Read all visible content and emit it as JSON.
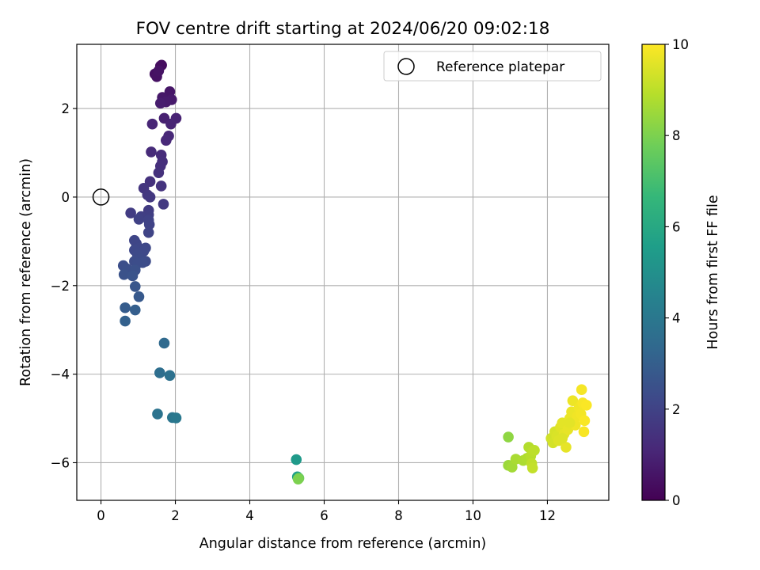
{
  "chart_data": {
    "type": "scatter",
    "title": "FOV centre drift starting at 2024/06/20 09:02:18",
    "xlabel": "Angular distance from reference (arcmin)",
    "ylabel": "Rotation from reference (arcmin)",
    "xlim": [
      -0.65,
      13.65
    ],
    "ylim": [
      -6.85,
      3.45
    ],
    "xticks": [
      0,
      2,
      4,
      6,
      8,
      10,
      12
    ],
    "xtick_labels": [
      "0",
      "2",
      "4",
      "6",
      "8",
      "10",
      "12"
    ],
    "yticks": [
      -6,
      -4,
      -2,
      0,
      2
    ],
    "ytick_labels": [
      "−6",
      "−4",
      "−2",
      "0",
      "2"
    ],
    "grid": true,
    "legend": {
      "position": "top-right",
      "label": "Reference platepar"
    },
    "reference": {
      "x": 0,
      "y": 0
    },
    "colorbar": {
      "label": "Hours from first FF file",
      "range": [
        0,
        10
      ],
      "ticks": [
        0,
        2,
        4,
        6,
        8,
        10
      ],
      "tick_labels": [
        "0",
        "2",
        "4",
        "6",
        "8",
        "10"
      ],
      "colormap": "viridis"
    },
    "colormap_stops": [
      "#440154",
      "#482878",
      "#3e4989",
      "#31688e",
      "#26828e",
      "#1f9e89",
      "#35b779",
      "#6ece58",
      "#b5de2b",
      "#fde725"
    ],
    "series": [
      {
        "points": [
          [
            1.63,
            2.98
          ],
          [
            1.6,
            2.96
          ],
          [
            1.45,
            2.78
          ],
          [
            1.5,
            2.72
          ],
          [
            1.55,
            2.85
          ],
          [
            1.85,
            2.38
          ],
          [
            1.65,
            2.25
          ],
          [
            1.9,
            2.2
          ],
          [
            1.75,
            2.15
          ],
          [
            1.6,
            2.12
          ],
          [
            1.7,
            1.78
          ],
          [
            2.02,
            1.78
          ],
          [
            1.88,
            1.65
          ],
          [
            1.38,
            1.65
          ],
          [
            1.82,
            1.38
          ],
          [
            1.75,
            1.28
          ],
          [
            1.35,
            1.02
          ],
          [
            1.62,
            0.95
          ],
          [
            1.65,
            0.8
          ],
          [
            1.6,
            0.7
          ],
          [
            1.55,
            0.55
          ],
          [
            1.32,
            0.35
          ],
          [
            1.62,
            0.25
          ],
          [
            1.15,
            0.2
          ],
          [
            1.25,
            0.05
          ],
          [
            1.32,
            0.0
          ],
          [
            1.68,
            -0.16
          ],
          [
            1.28,
            -0.3
          ],
          [
            0.8,
            -0.36
          ],
          [
            1.28,
            -0.4
          ],
          [
            1.08,
            -0.44
          ],
          [
            1.02,
            -0.5
          ],
          [
            1.28,
            -0.52
          ],
          [
            1.3,
            -0.62
          ],
          [
            1.28,
            -0.8
          ],
          [
            0.9,
            -0.98
          ],
          [
            0.95,
            -1.05
          ],
          [
            1.02,
            -1.15
          ],
          [
            1.2,
            -1.15
          ],
          [
            0.9,
            -1.2
          ],
          [
            1.15,
            -1.22
          ],
          [
            0.98,
            -1.3
          ],
          [
            1.05,
            -1.4
          ],
          [
            1.2,
            -1.45
          ],
          [
            0.9,
            -1.45
          ],
          [
            1.12,
            -1.48
          ],
          [
            0.98,
            -1.5
          ],
          [
            0.6,
            -1.55
          ],
          [
            0.7,
            -1.62
          ],
          [
            0.92,
            -1.65
          ],
          [
            0.62,
            -1.75
          ],
          [
            0.85,
            -1.78
          ],
          [
            0.92,
            -2.02
          ],
          [
            1.02,
            -2.25
          ],
          [
            0.65,
            -2.5
          ],
          [
            0.92,
            -2.55
          ],
          [
            0.65,
            -2.8
          ],
          [
            1.7,
            -3.3
          ],
          [
            1.58,
            -3.97
          ],
          [
            1.85,
            -4.03
          ],
          [
            1.52,
            -4.9
          ],
          [
            1.92,
            -4.98
          ],
          [
            2.02,
            -4.99
          ],
          [
            5.25,
            -5.93
          ],
          [
            5.28,
            -6.32
          ],
          [
            5.32,
            -6.35
          ],
          [
            5.3,
            -6.37
          ],
          [
            10.95,
            -5.42
          ],
          [
            10.95,
            -6.06
          ],
          [
            11.05,
            -6.1
          ],
          [
            11.15,
            -5.92
          ],
          [
            11.35,
            -5.95
          ],
          [
            11.45,
            -5.9
          ],
          [
            11.5,
            -5.65
          ],
          [
            11.55,
            -5.85
          ],
          [
            11.6,
            -5.75
          ],
          [
            11.65,
            -5.72
          ],
          [
            11.58,
            -6.02
          ],
          [
            11.6,
            -6.12
          ],
          [
            12.1,
            -5.45
          ],
          [
            12.15,
            -5.55
          ],
          [
            12.2,
            -5.3
          ],
          [
            12.25,
            -5.4
          ],
          [
            12.3,
            -5.5
          ],
          [
            12.35,
            -5.2
          ],
          [
            12.4,
            -5.1
          ],
          [
            12.45,
            -5.35
          ],
          [
            12.5,
            -5.65
          ],
          [
            12.55,
            -5.25
          ],
          [
            12.6,
            -5.0
          ],
          [
            12.65,
            -4.85
          ],
          [
            12.68,
            -4.6
          ],
          [
            12.75,
            -5.15
          ],
          [
            12.8,
            -4.95
          ],
          [
            12.85,
            -4.75
          ],
          [
            12.9,
            -4.9
          ],
          [
            12.92,
            -4.35
          ],
          [
            12.95,
            -4.65
          ],
          [
            12.98,
            -5.3
          ],
          [
            13.0,
            -5.05
          ],
          [
            13.05,
            -4.7
          ],
          [
            12.6,
            -5.1
          ],
          [
            12.4,
            -5.45
          ]
        ],
        "hours": [
          0.3,
          0.35,
          0.4,
          0.45,
          0.5,
          0.6,
          0.65,
          0.7,
          0.75,
          0.8,
          0.9,
          0.95,
          1.0,
          1.05,
          1.1,
          1.15,
          1.2,
          1.25,
          1.3,
          1.35,
          1.4,
          1.45,
          1.5,
          1.55,
          1.6,
          1.65,
          1.7,
          1.75,
          1.8,
          1.85,
          1.9,
          1.95,
          2.0,
          2.02,
          2.05,
          2.1,
          2.12,
          2.15,
          2.18,
          2.2,
          2.22,
          2.25,
          2.28,
          2.3,
          2.32,
          2.35,
          2.38,
          2.4,
          2.45,
          2.5,
          2.55,
          2.6,
          2.7,
          2.8,
          2.9,
          3.0,
          3.1,
          3.4,
          3.6,
          3.7,
          3.8,
          3.9,
          4.0,
          5.4,
          5.6,
          7.7,
          8.0,
          8.3,
          8.5,
          8.6,
          8.7,
          8.75,
          8.8,
          8.85,
          8.9,
          8.95,
          9.0,
          9.05,
          9.1,
          9.3,
          9.35,
          9.4,
          9.45,
          9.5,
          9.55,
          9.6,
          9.62,
          9.64,
          9.66,
          9.7,
          9.72,
          9.75,
          9.78,
          9.8,
          9.82,
          9.85,
          9.88,
          9.9,
          9.92,
          9.94,
          9.96,
          9.6,
          9.5
        ]
      }
    ]
  }
}
